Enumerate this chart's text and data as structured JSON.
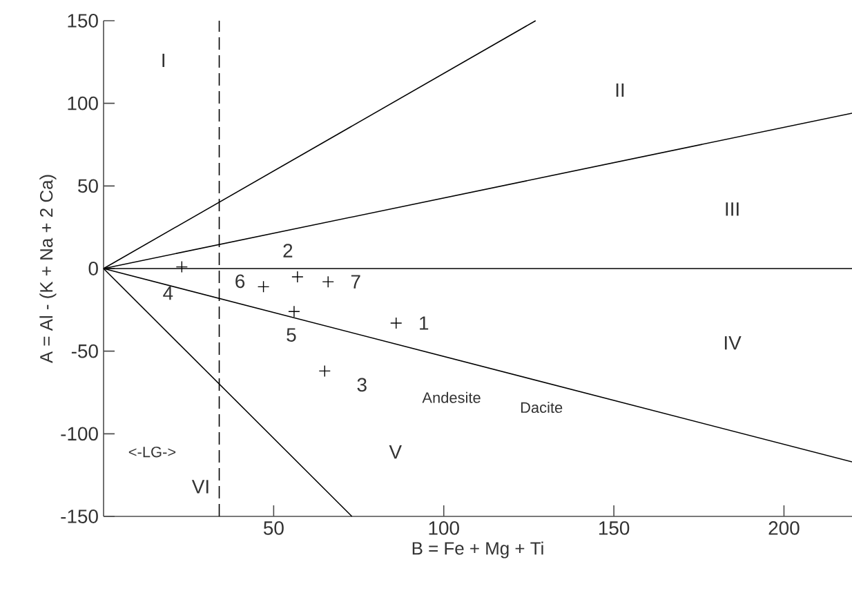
{
  "chart_data": {
    "type": "scatter",
    "xlabel": "B = Fe + Mg + Ti",
    "ylabel": "A = Al - (K + Na + 2 Ca)",
    "xlim": [
      0,
      220
    ],
    "ylim": [
      -150,
      150
    ],
    "xticks": [
      50,
      100,
      150,
      200
    ],
    "yticks": [
      -150,
      -100,
      -50,
      0,
      50,
      100,
      150
    ],
    "grid": false,
    "marker": "cross",
    "series": [
      {
        "color": "#000000",
        "x": [
          86,
          57,
          65,
          23,
          56,
          47,
          66
        ],
        "values": [
          -33,
          -5,
          -62,
          1,
          -26,
          -11,
          -8
        ]
      },
      {
        "type": "line",
        "color": "#000000",
        "marker": "none",
        "x": [
          0,
          127
        ],
        "values": [
          0,
          150
        ]
      },
      {
        "type": "line",
        "color": "#000000",
        "marker": "none",
        "x": [
          0,
          220
        ],
        "values": [
          0,
          94
        ]
      },
      {
        "type": "line",
        "color": "#000000",
        "marker": "none",
        "x": [
          0,
          220
        ],
        "values": [
          0,
          0
        ]
      },
      {
        "type": "line",
        "color": "#000000",
        "marker": "none",
        "x": [
          0,
          220
        ],
        "values": [
          0,
          -117
        ]
      },
      {
        "type": "line",
        "color": "#000000",
        "marker": "none",
        "x": [
          0,
          73
        ],
        "values": [
          0,
          -150
        ]
      }
    ],
    "ref_lines": [
      {
        "axis": "x",
        "value": 34,
        "line_style": "dashed",
        "color": "#000000"
      }
    ],
    "annotations": [
      "I",
      "II",
      "III",
      "IV",
      "V",
      "VI",
      "<-LG->",
      "Andesite",
      "Dacite",
      {
        "text": "1",
        "x": 86,
        "y": -33
      },
      {
        "text": "2",
        "x": 57,
        "y": -5
      },
      {
        "text": "3",
        "x": 65,
        "y": -62
      },
      {
        "text": "4",
        "x": 23,
        "y": 1
      },
      {
        "text": "5",
        "x": 56,
        "y": -26
      },
      {
        "text": "6",
        "x": 47,
        "y": -11
      },
      {
        "text": "7",
        "x": 66,
        "y": -8
      }
    ]
  }
}
